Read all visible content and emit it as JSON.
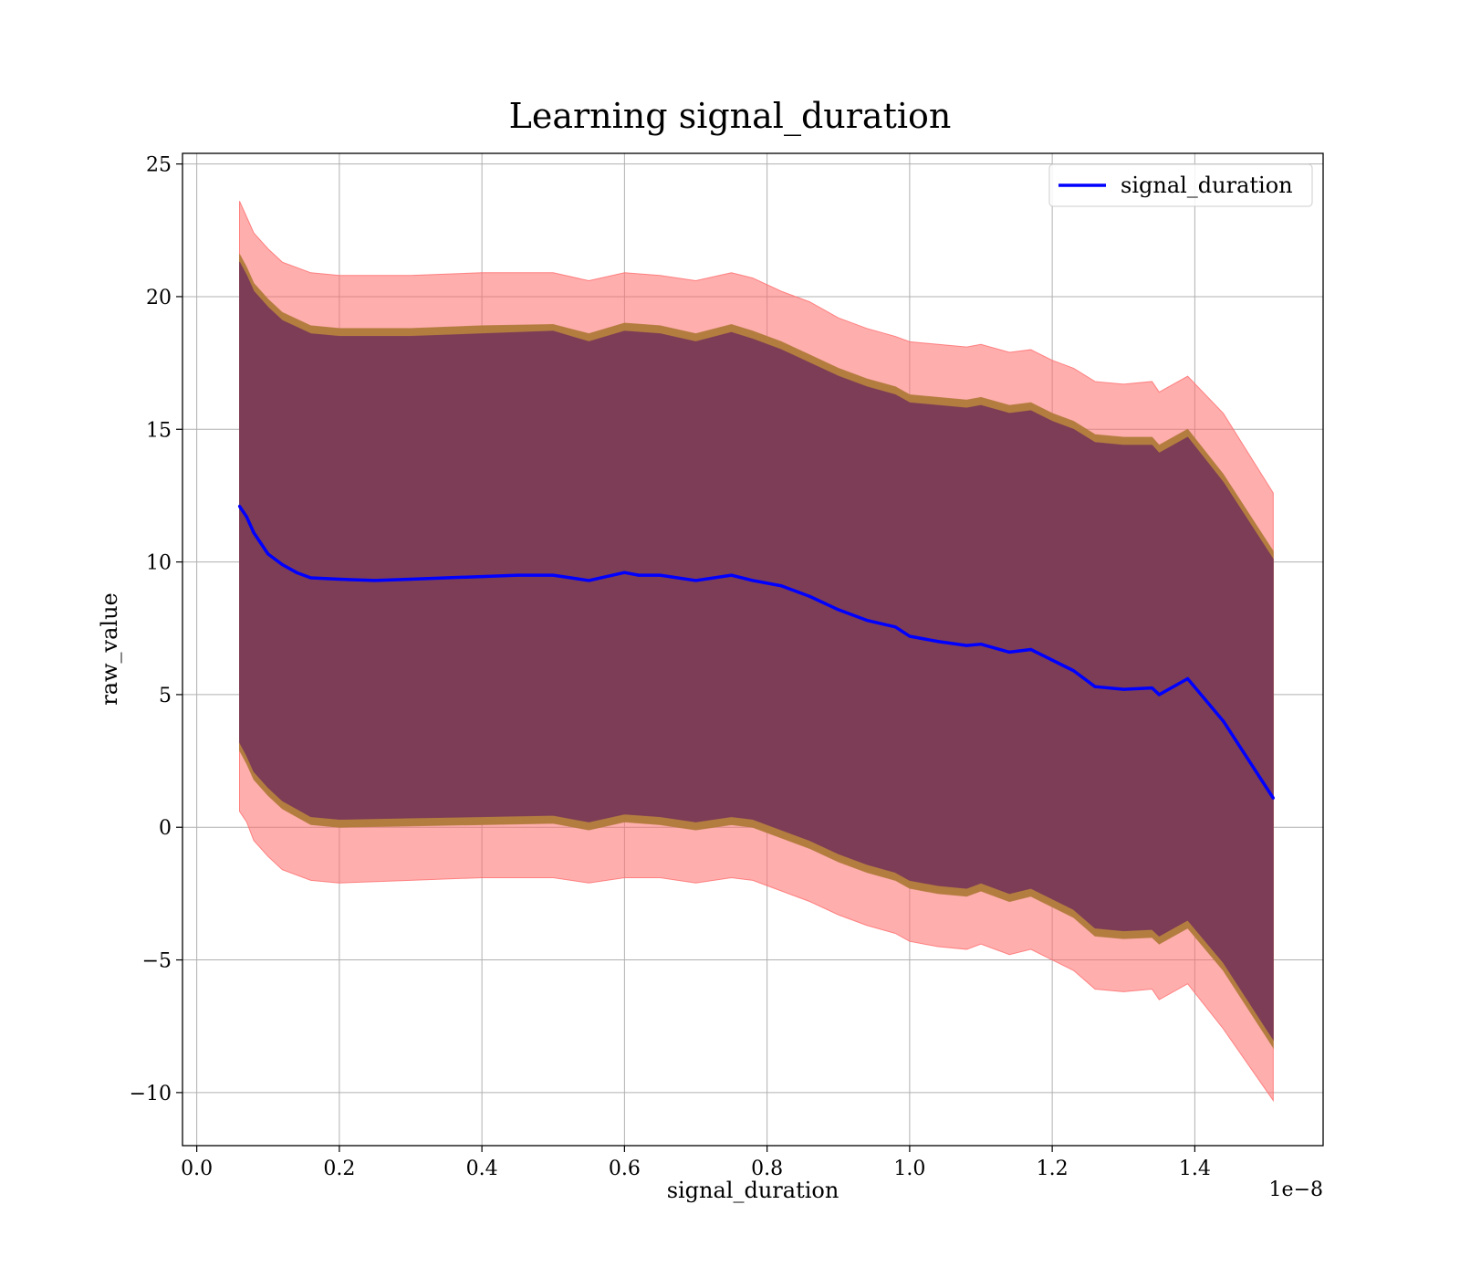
{
  "chart_data": {
    "type": "line",
    "title": "Learning signal_duration",
    "xlabel": "signal_duration",
    "ylabel": "raw_value",
    "x_offset_label": "1e−8",
    "xlim": [
      -0.02,
      1.58
    ],
    "ylim": [
      -12,
      25.4
    ],
    "x_ticks": [
      0.0,
      0.2,
      0.4,
      0.6,
      0.8,
      1.0,
      1.2,
      1.4
    ],
    "x_tick_labels": [
      "0.0",
      "0.2",
      "0.4",
      "0.6",
      "0.8",
      "1.0",
      "1.2",
      "1.4"
    ],
    "y_ticks": [
      -10,
      -5,
      0,
      5,
      10,
      15,
      20,
      25
    ],
    "y_tick_labels": [
      "−10",
      "−5",
      "0",
      "5",
      "10",
      "15",
      "20",
      "25"
    ],
    "grid": true,
    "legend_position": "top-right",
    "colors": {
      "line": "#0000ff",
      "outer_band": "#ff6b6b",
      "middle_band": "#b07a3a",
      "inner_band": "#7a3a58",
      "grid": "#b0b0b0"
    },
    "series": [
      {
        "name": "signal_duration",
        "x": [
          0.06,
          0.07,
          0.08,
          0.09,
          0.1,
          0.12,
          0.14,
          0.16,
          0.2,
          0.25,
          0.3,
          0.35,
          0.4,
          0.45,
          0.5,
          0.55,
          0.6,
          0.62,
          0.65,
          0.7,
          0.75,
          0.78,
          0.82,
          0.86,
          0.9,
          0.94,
          0.98,
          1.0,
          1.04,
          1.08,
          1.1,
          1.14,
          1.17,
          1.2,
          1.23,
          1.26,
          1.3,
          1.34,
          1.35,
          1.39,
          1.44,
          1.51
        ],
        "values": [
          12.1,
          11.7,
          11.1,
          10.7,
          10.3,
          9.9,
          9.6,
          9.4,
          9.35,
          9.3,
          9.35,
          9.4,
          9.45,
          9.5,
          9.5,
          9.3,
          9.6,
          9.5,
          9.5,
          9.3,
          9.5,
          9.3,
          9.1,
          8.7,
          8.2,
          7.8,
          7.55,
          7.2,
          7.0,
          6.85,
          6.9,
          6.6,
          6.7,
          6.3,
          5.9,
          5.3,
          5.2,
          5.25,
          5.0,
          5.6,
          4.0,
          1.1
        ]
      }
    ],
    "bands": [
      {
        "x": [
          0.06,
          0.07,
          0.08,
          0.1,
          0.12,
          0.16,
          0.2,
          0.3,
          0.4,
          0.5,
          0.55,
          0.6,
          0.65,
          0.7,
          0.75,
          0.78,
          0.82,
          0.86,
          0.9,
          0.94,
          0.98,
          1.0,
          1.04,
          1.08,
          1.1,
          1.14,
          1.17,
          1.2,
          1.23,
          1.26,
          1.3,
          1.34,
          1.35,
          1.39,
          1.44,
          1.51
        ],
        "upper": [
          23.6,
          23.0,
          22.4,
          21.8,
          21.3,
          20.9,
          20.8,
          20.8,
          20.9,
          20.9,
          20.6,
          20.9,
          20.8,
          20.6,
          20.9,
          20.7,
          20.2,
          19.8,
          19.2,
          18.8,
          18.5,
          18.3,
          18.2,
          18.1,
          18.2,
          17.9,
          18.0,
          17.6,
          17.3,
          16.8,
          16.7,
          16.8,
          16.4,
          17.0,
          15.6,
          12.6
        ],
        "lower": [
          0.6,
          0.2,
          -0.5,
          -1.1,
          -1.6,
          -2.0,
          -2.1,
          -2.0,
          -1.9,
          -1.9,
          -2.1,
          -1.9,
          -1.9,
          -2.1,
          -1.9,
          -2.0,
          -2.4,
          -2.8,
          -3.3,
          -3.7,
          -4.0,
          -4.3,
          -4.5,
          -4.6,
          -4.4,
          -4.8,
          -4.6,
          -5.0,
          -5.4,
          -6.1,
          -6.2,
          -6.1,
          -6.5,
          -5.9,
          -7.6,
          -10.3
        ]
      },
      {
        "x": [
          0.06,
          0.07,
          0.08,
          0.1,
          0.12,
          0.16,
          0.2,
          0.3,
          0.4,
          0.5,
          0.55,
          0.6,
          0.65,
          0.7,
          0.75,
          0.78,
          0.82,
          0.86,
          0.9,
          0.94,
          0.98,
          1.0,
          1.04,
          1.08,
          1.1,
          1.14,
          1.17,
          1.2,
          1.23,
          1.26,
          1.3,
          1.34,
          1.35,
          1.39,
          1.44,
          1.51
        ],
        "upper": [
          21.6,
          21.1,
          20.5,
          19.9,
          19.4,
          18.9,
          18.8,
          18.8,
          18.9,
          18.95,
          18.6,
          19.0,
          18.9,
          18.6,
          18.95,
          18.7,
          18.3,
          17.8,
          17.3,
          16.9,
          16.6,
          16.3,
          16.2,
          16.1,
          16.2,
          15.9,
          16.0,
          15.6,
          15.3,
          14.8,
          14.7,
          14.7,
          14.4,
          15.0,
          13.3,
          10.4
        ],
        "lower": [
          2.9,
          2.4,
          1.8,
          1.2,
          0.7,
          0.1,
          0.0,
          0.05,
          0.1,
          0.15,
          -0.1,
          0.2,
          0.1,
          -0.1,
          0.1,
          0.0,
          -0.4,
          -0.8,
          -1.3,
          -1.7,
          -2.0,
          -2.3,
          -2.5,
          -2.6,
          -2.4,
          -2.8,
          -2.6,
          -3.0,
          -3.4,
          -4.1,
          -4.2,
          -4.15,
          -4.4,
          -3.8,
          -5.4,
          -8.3
        ]
      },
      {
        "x": [
          0.06,
          0.07,
          0.08,
          0.1,
          0.12,
          0.16,
          0.2,
          0.3,
          0.4,
          0.5,
          0.55,
          0.6,
          0.65,
          0.7,
          0.75,
          0.78,
          0.82,
          0.86,
          0.9,
          0.94,
          0.98,
          1.0,
          1.04,
          1.08,
          1.1,
          1.14,
          1.17,
          1.2,
          1.23,
          1.26,
          1.3,
          1.34,
          1.35,
          1.39,
          1.44,
          1.51
        ],
        "upper": [
          21.3,
          20.8,
          20.2,
          19.6,
          19.1,
          18.6,
          18.5,
          18.5,
          18.6,
          18.7,
          18.3,
          18.7,
          18.6,
          18.3,
          18.65,
          18.4,
          18.0,
          17.5,
          17.0,
          16.6,
          16.3,
          16.0,
          15.9,
          15.8,
          15.9,
          15.6,
          15.7,
          15.3,
          15.0,
          14.5,
          14.4,
          14.4,
          14.1,
          14.7,
          13.0,
          10.1
        ],
        "lower": [
          3.2,
          2.7,
          2.1,
          1.5,
          1.0,
          0.4,
          0.3,
          0.35,
          0.4,
          0.45,
          0.2,
          0.5,
          0.4,
          0.2,
          0.4,
          0.3,
          -0.1,
          -0.5,
          -1.0,
          -1.4,
          -1.7,
          -2.0,
          -2.2,
          -2.3,
          -2.1,
          -2.5,
          -2.3,
          -2.7,
          -3.1,
          -3.8,
          -3.9,
          -3.85,
          -4.1,
          -3.5,
          -5.1,
          -8.0
        ]
      }
    ]
  }
}
